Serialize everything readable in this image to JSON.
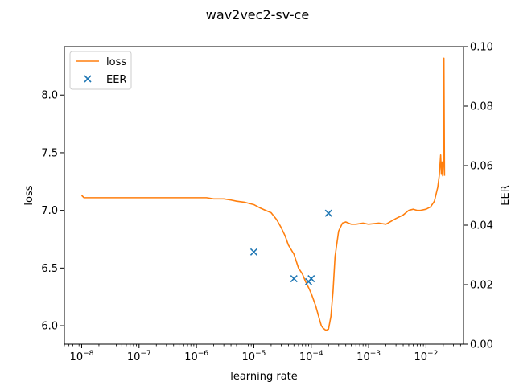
{
  "chart_data": {
    "type": "line",
    "title": "wav2vec2-sv-ce",
    "xlabel": "learning rate",
    "ylabel": "loss",
    "y2label": "EER",
    "x_scale": "log",
    "xlim": [
      5e-09,
      0.045
    ],
    "ylim": [
      5.84,
      8.42
    ],
    "y2lim": [
      0.0,
      0.1
    ],
    "x_ticks": [
      1e-08,
      1e-07,
      1e-06,
      1e-05,
      0.0001,
      0.001,
      0.01
    ],
    "x_tick_labels": [
      {
        "base": "10",
        "exp": "−8"
      },
      {
        "base": "10",
        "exp": "−7"
      },
      {
        "base": "10",
        "exp": "−6"
      },
      {
        "base": "10",
        "exp": "−5"
      },
      {
        "base": "10",
        "exp": "−4"
      },
      {
        "base": "10",
        "exp": "−3"
      },
      {
        "base": "10",
        "exp": "−2"
      }
    ],
    "y_ticks": [
      6.0,
      6.5,
      7.0,
      7.5,
      8.0
    ],
    "y_tick_labels": [
      "6.0",
      "6.5",
      "7.0",
      "7.5",
      "8.0"
    ],
    "y2_ticks": [
      0.0,
      0.02,
      0.04,
      0.06,
      0.08,
      0.1
    ],
    "y2_tick_labels": [
      "0.00",
      "0.02",
      "0.04",
      "0.06",
      "0.08",
      "0.10"
    ],
    "grid": false,
    "legend_position": "top-left",
    "series": [
      {
        "name": "loss",
        "type": "line",
        "axis": "left",
        "color": "#ff7f0e",
        "x": [
          1e-08,
          1.1e-08,
          1.5e-08,
          2e-08,
          3e-08,
          5e-08,
          1e-07,
          2e-07,
          5e-07,
          1e-06,
          1.5e-06,
          2e-06,
          3e-06,
          4e-06,
          5e-06,
          7e-06,
          1e-05,
          1.3e-05,
          1.6e-05,
          2e-05,
          2.5e-05,
          3e-05,
          3.5e-05,
          4e-05,
          5e-05,
          6e-05,
          7e-05,
          8e-05,
          9e-05,
          0.0001,
          0.00012,
          0.00014,
          0.00015,
          0.00016,
          0.00018,
          0.0002,
          0.00022,
          0.00024,
          0.00026,
          0.0003,
          0.00035,
          0.0004,
          0.0005,
          0.0006,
          0.0008,
          0.001,
          0.0015,
          0.002,
          0.003,
          0.004,
          0.005,
          0.006,
          0.007,
          0.008,
          0.01,
          0.012,
          0.014,
          0.016,
          0.017,
          0.018,
          0.0185,
          0.019,
          0.0195,
          0.02,
          0.0205,
          0.021
        ],
        "y": [
          7.13,
          7.11,
          7.11,
          7.11,
          7.11,
          7.11,
          7.11,
          7.11,
          7.11,
          7.11,
          7.11,
          7.1,
          7.1,
          7.09,
          7.08,
          7.07,
          7.05,
          7.02,
          7.0,
          6.98,
          6.92,
          6.85,
          6.78,
          6.7,
          6.62,
          6.5,
          6.45,
          6.38,
          6.33,
          6.28,
          6.17,
          6.05,
          6.0,
          5.98,
          5.96,
          5.97,
          6.08,
          6.3,
          6.6,
          6.82,
          6.89,
          6.9,
          6.88,
          6.88,
          6.89,
          6.88,
          6.89,
          6.88,
          6.93,
          6.96,
          7.0,
          7.01,
          7.0,
          7.0,
          7.01,
          7.03,
          7.08,
          7.2,
          7.3,
          7.48,
          7.32,
          7.42,
          7.3,
          7.4,
          8.32,
          7.3
        ]
      },
      {
        "name": "EER",
        "type": "scatter",
        "axis": "right",
        "marker": "x",
        "color": "#1f77b4",
        "x": [
          1e-05,
          5e-05,
          9e-05,
          0.0001,
          0.0002
        ],
        "y": [
          0.031,
          0.022,
          0.021,
          0.022,
          0.044
        ]
      }
    ]
  }
}
